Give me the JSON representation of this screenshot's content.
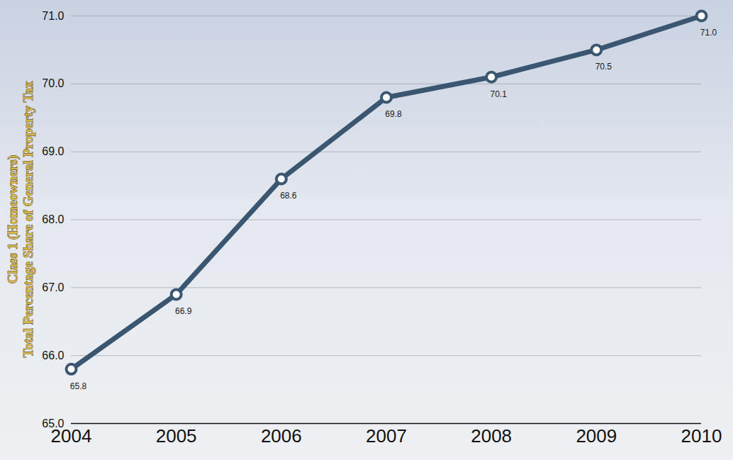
{
  "chart_data": {
    "type": "line",
    "ylabel": [
      "Class 1 (Homeowners)",
      "Total Percentage Share of General Property Tax"
    ],
    "x": [
      2004,
      2005,
      2006,
      2007,
      2008,
      2009,
      2010
    ],
    "values": [
      65.8,
      66.9,
      68.6,
      69.8,
      70.1,
      70.5,
      71.0
    ],
    "value_labels": [
      "65.8",
      "66.9",
      "68.6",
      "69.8",
      "70.1",
      "70.5",
      "71.0"
    ],
    "xlim": [
      2004,
      2010
    ],
    "xticks": [
      2004,
      2005,
      2006,
      2007,
      2008,
      2009,
      2010
    ],
    "ylim": [
      65,
      71
    ],
    "yticks": [
      65,
      66,
      67,
      68,
      69,
      70,
      71
    ],
    "grid": true,
    "data_labels": true,
    "color": "#3b5670",
    "marker": "circle"
  }
}
